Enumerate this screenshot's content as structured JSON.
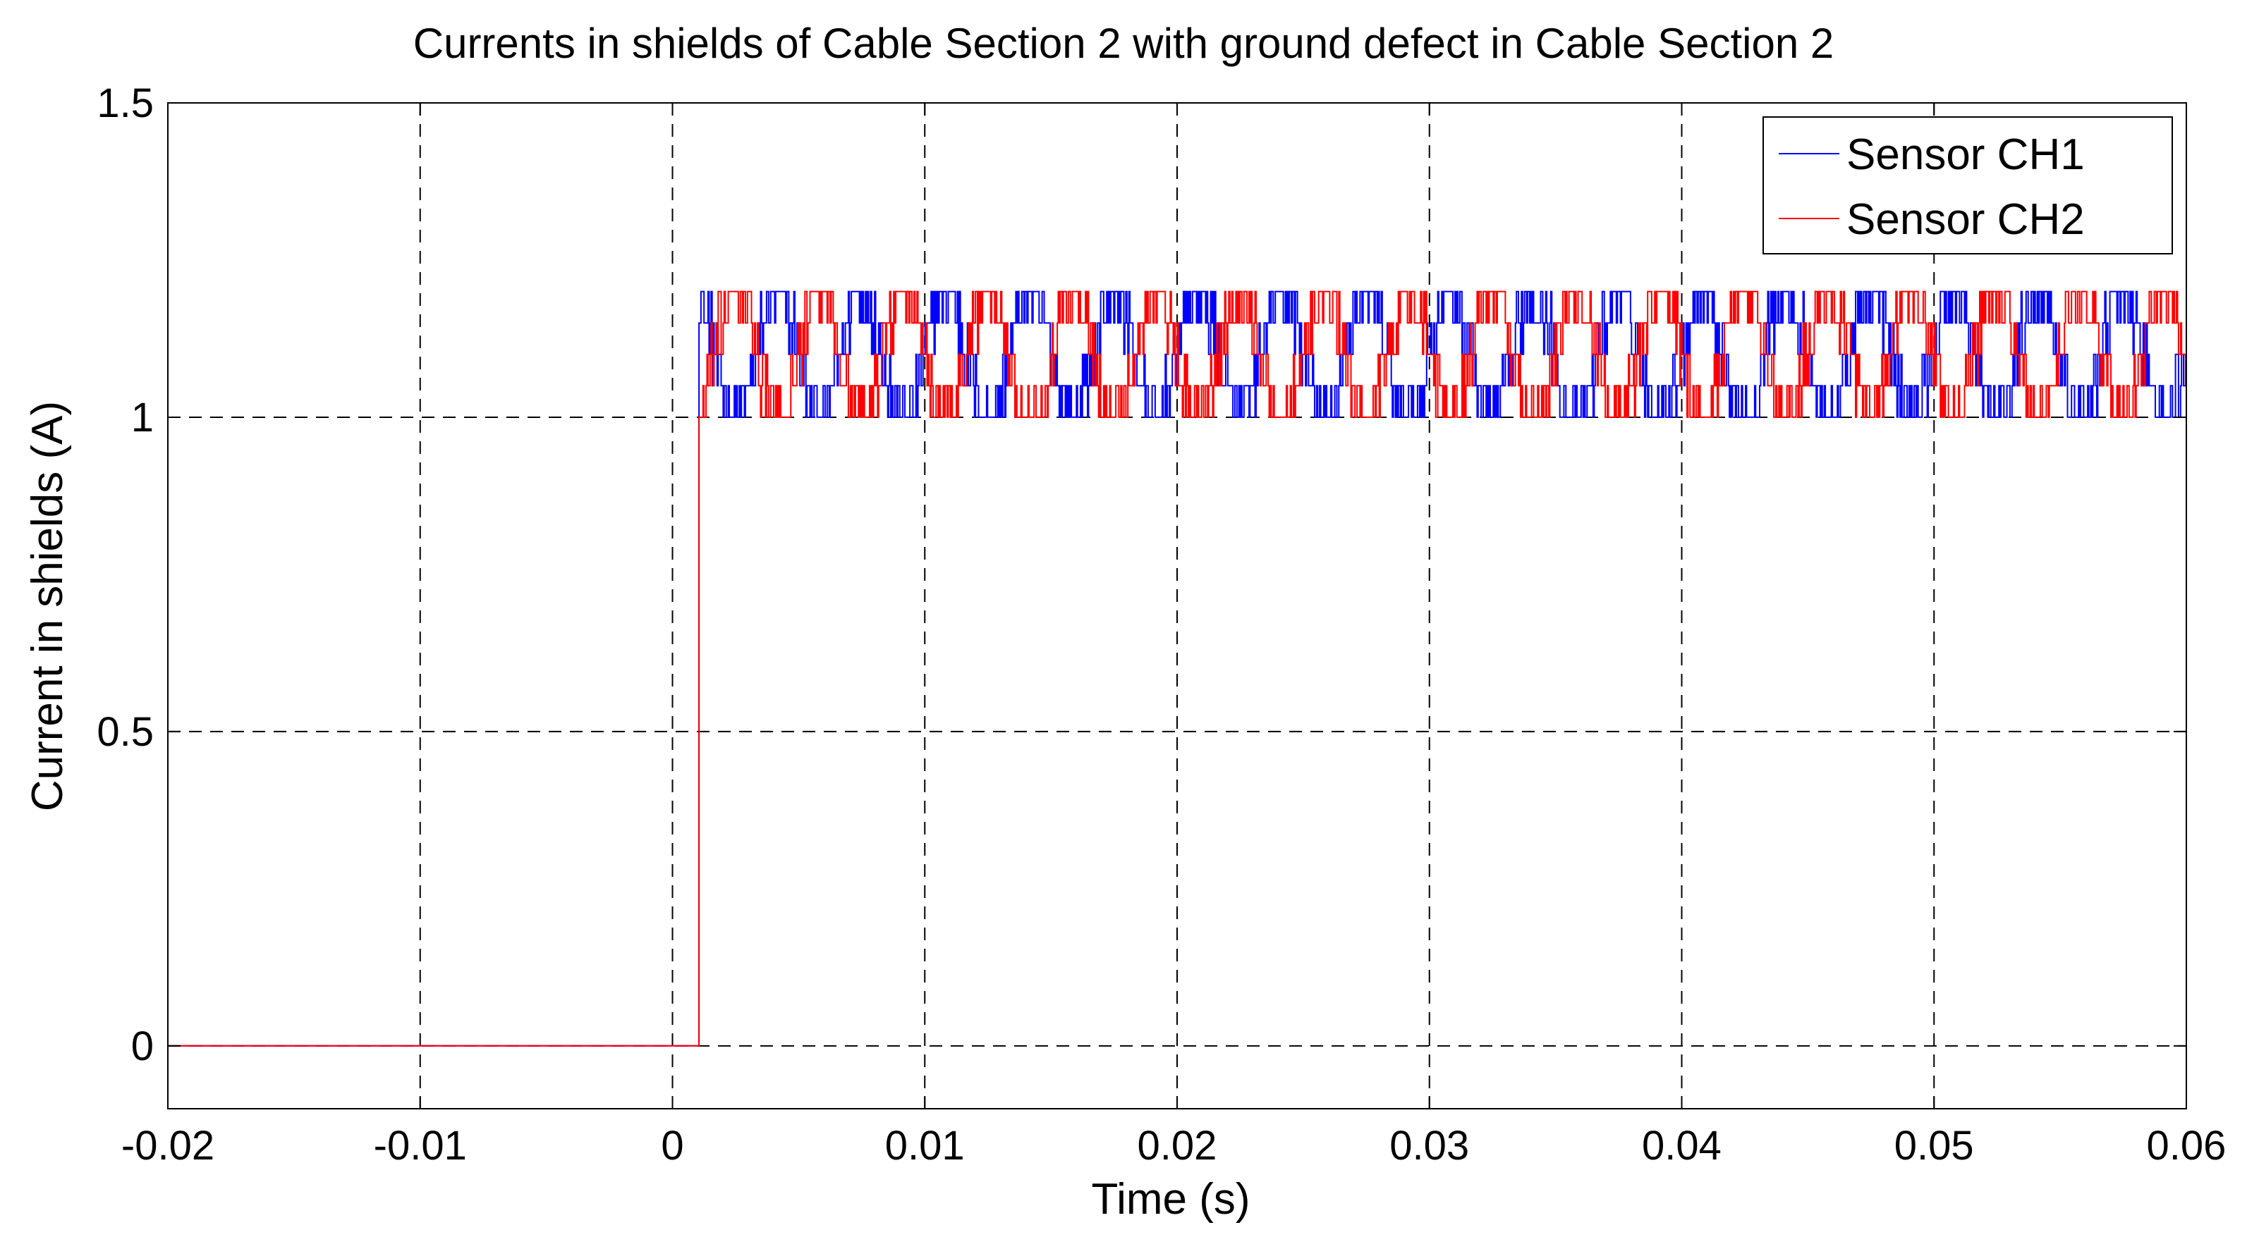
{
  "chart_data": {
    "type": "line",
    "title": "Currents in shields of Cable Section 2 with ground defect in Cable Section 2",
    "xlabel": "Time (s)",
    "ylabel": "Current in shields (A)",
    "xlim": [
      -0.02,
      0.06
    ],
    "ylim": [
      -0.1,
      1.5
    ],
    "xticks": [
      -0.02,
      -0.01,
      0,
      0.01,
      0.02,
      0.03,
      0.04,
      0.05,
      0.06
    ],
    "xtick_labels": [
      "-0.02",
      "-0.01",
      "0",
      "0.01",
      "0.02",
      "0.03",
      "0.04",
      "0.05",
      "0.06"
    ],
    "yticks": [
      0,
      0.5,
      1,
      1.5
    ],
    "ytick_labels": [
      "0",
      "0.5",
      "1",
      "1.5"
    ],
    "grid": true,
    "grid_style": "dashed",
    "legend_position": "top-right",
    "series": [
      {
        "name": "Sensor CH1",
        "color": "#0000ff",
        "step_time": 0.001,
        "pre_value": 0,
        "post_min": 1.0,
        "post_max": 1.2,
        "ripple_period": 0.00333,
        "ripple_phase": 0.0
      },
      {
        "name": "Sensor CH2",
        "color": "#ff0000",
        "step_time": 0.001,
        "pre_value": 0,
        "post_min": 1.0,
        "post_max": 1.2,
        "ripple_period": 0.00333,
        "ripple_phase": 0.00167
      }
    ],
    "legend": [
      "Sensor CH1",
      "Sensor CH2"
    ]
  }
}
